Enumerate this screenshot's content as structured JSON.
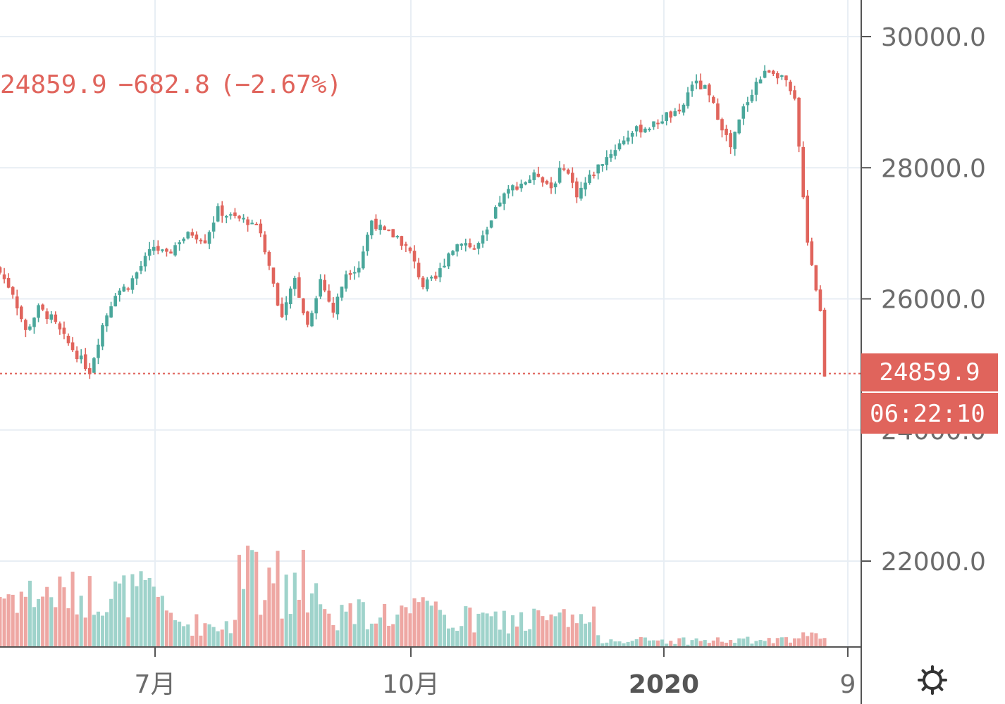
{
  "legend": {
    "last": "24859.9",
    "change": "−682.8",
    "percent": "(−2.67%)"
  },
  "price_tag": {
    "value": "24859.9",
    "countdown": "06:22:10"
  },
  "settings_icon": "gear-icon",
  "colors": {
    "up": "#4aa79b",
    "down": "#e0645c",
    "up_volume": "#9fd3cb",
    "down_volume": "#eea7a3",
    "grid": "#e8eef4",
    "axis": "#555555"
  },
  "chart_data": {
    "type": "candlestick",
    "title": "",
    "y_axis": {
      "ticks": [
        "30000.0",
        "28000.0",
        "26000.0",
        "24000.0",
        "22000.0"
      ],
      "tick_values": [
        30000,
        28000,
        26000,
        24000,
        22000
      ],
      "range": [
        20780,
        30520
      ],
      "side": "right"
    },
    "x_axis": {
      "tick_labels": [
        "7月",
        "10月",
        "2020",
        "9"
      ],
      "bold_labels": [
        "2020"
      ]
    },
    "last_price": 24859.9,
    "price_path": [
      [
        0,
        26400
      ],
      [
        3,
        26100
      ],
      [
        6,
        25500
      ],
      [
        9,
        25850
      ],
      [
        12,
        25700
      ],
      [
        15,
        25400
      ],
      [
        18,
        25150
      ],
      [
        21,
        24900
      ],
      [
        24,
        25600
      ],
      [
        27,
        26100
      ],
      [
        30,
        26200
      ],
      [
        33,
        26500
      ],
      [
        36,
        26800
      ],
      [
        39,
        26650
      ],
      [
        42,
        26900
      ],
      [
        45,
        27000
      ],
      [
        48,
        26900
      ],
      [
        51,
        27350
      ],
      [
        54,
        27250
      ],
      [
        57,
        27200
      ],
      [
        60,
        27150
      ],
      [
        63,
        26500
      ],
      [
        66,
        25700
      ],
      [
        69,
        26300
      ],
      [
        72,
        25600
      ],
      [
        75,
        26300
      ],
      [
        78,
        25800
      ],
      [
        81,
        26400
      ],
      [
        84,
        26500
      ],
      [
        87,
        27200
      ],
      [
        90,
        27000
      ],
      [
        93,
        26950
      ],
      [
        96,
        26700
      ],
      [
        99,
        26200
      ],
      [
        102,
        26300
      ],
      [
        105,
        26700
      ],
      [
        108,
        26900
      ],
      [
        111,
        26750
      ],
      [
        114,
        27000
      ],
      [
        117,
        27500
      ],
      [
        120,
        27700
      ],
      [
        123,
        27800
      ],
      [
        126,
        27900
      ],
      [
        129,
        27700
      ],
      [
        132,
        28050
      ],
      [
        135,
        27600
      ],
      [
        138,
        27850
      ],
      [
        141,
        28100
      ],
      [
        144,
        28300
      ],
      [
        147,
        28500
      ],
      [
        150,
        28600
      ],
      [
        153,
        28650
      ],
      [
        156,
        28800
      ],
      [
        159,
        28800
      ],
      [
        162,
        29300
      ],
      [
        165,
        29200
      ],
      [
        168,
        28800
      ],
      [
        171,
        28300
      ],
      [
        174,
        28900
      ],
      [
        177,
        29300
      ],
      [
        180,
        29500
      ],
      [
        183,
        29400
      ],
      [
        186,
        29000
      ],
      [
        189,
        26900
      ],
      [
        192,
        25800
      ],
      [
        193,
        24859.9
      ]
    ],
    "bars_total": 194,
    "volume": {
      "note": "relative volume bars below price"
    }
  }
}
